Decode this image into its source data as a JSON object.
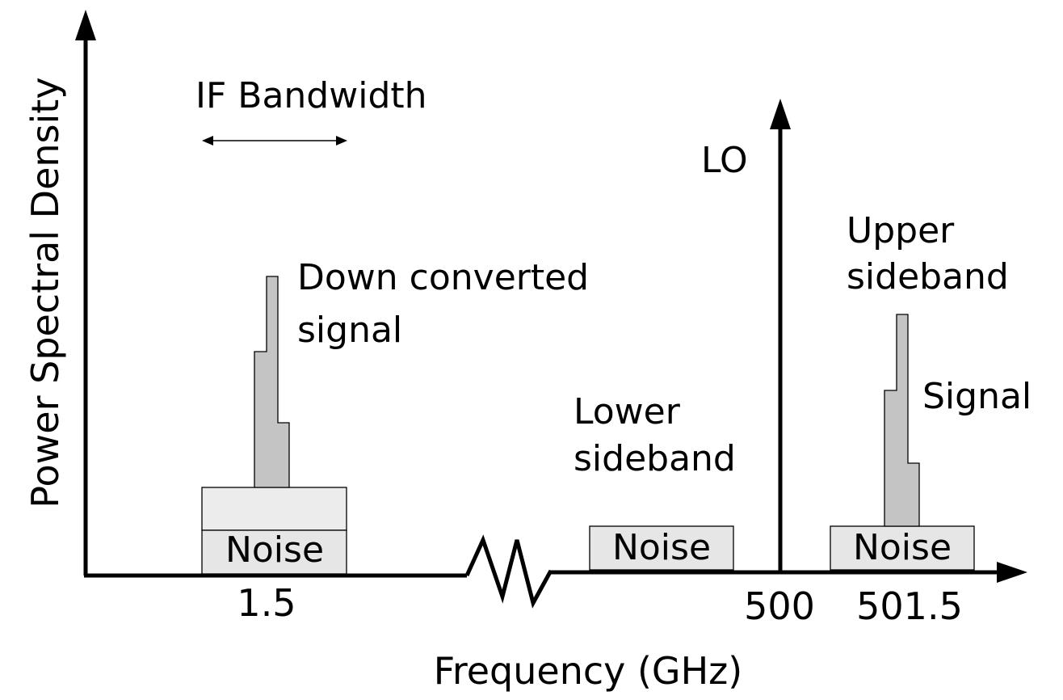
{
  "axes": {
    "y_label": "Power Spectral Density",
    "x_label": "Frequency (GHz)"
  },
  "ticks": {
    "t1": "1.5",
    "t2": "500",
    "t3": "501.5"
  },
  "labels": {
    "if_bandwidth": "IF Bandwidth",
    "lo": "LO",
    "down_converted_line1": "Down converted",
    "down_converted_line2": "signal",
    "lower_sideband_line1": "Lower",
    "lower_sideband_line2": "sideband",
    "upper_sideband_line1": "Upper",
    "upper_sideband_line2": "sideband",
    "signal": "Signal"
  },
  "noise_labels": {
    "if_noise": "Noise",
    "lsb_noise": "Noise",
    "usb_noise": "Noise"
  },
  "colors": {
    "noise_fill": "#e6e6e6",
    "signal_fill": "#c4c4c4",
    "axis": "#000000"
  }
}
